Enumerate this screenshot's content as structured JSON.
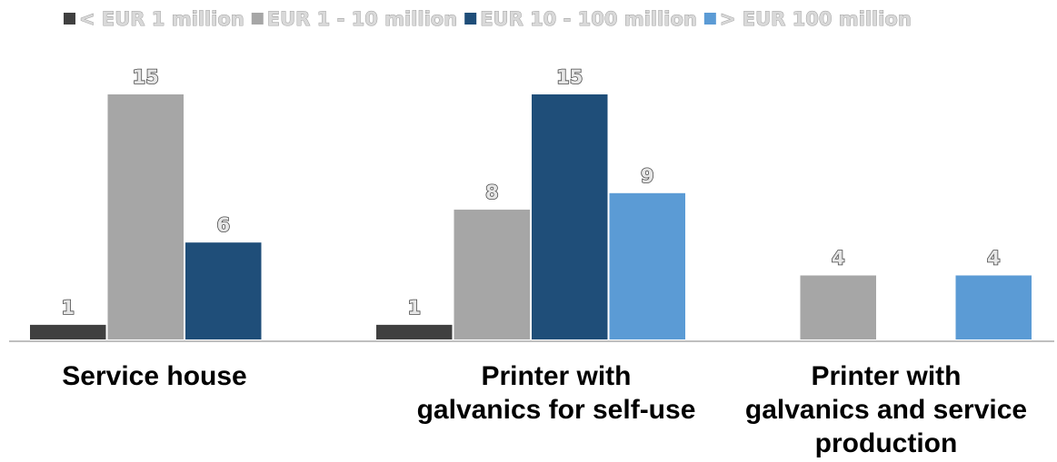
{
  "chart_data": {
    "type": "bar",
    "categories": [
      [
        "Service house"
      ],
      [
        "Printer with",
        "galvanics for self-use"
      ],
      [
        "Printer with",
        "galvanics and service",
        "production"
      ]
    ],
    "series": [
      {
        "name": "< EUR 1 million",
        "color": "#404040",
        "values": [
          1,
          1,
          null
        ]
      },
      {
        "name": "EUR 1 - 10 million",
        "color": "#a6a6a6",
        "values": [
          15,
          8,
          4
        ]
      },
      {
        "name": "EUR 10 - 100 million",
        "color": "#1f4e79",
        "values": [
          6,
          15,
          null
        ]
      },
      {
        "name": "> EUR 100 million",
        "color": "#5b9bd5",
        "values": [
          null,
          9,
          4
        ]
      }
    ],
    "ylim": [
      0,
      17
    ],
    "legend_position": "top",
    "grid": false,
    "data_labels": true,
    "xlabel": "",
    "ylabel": ""
  }
}
